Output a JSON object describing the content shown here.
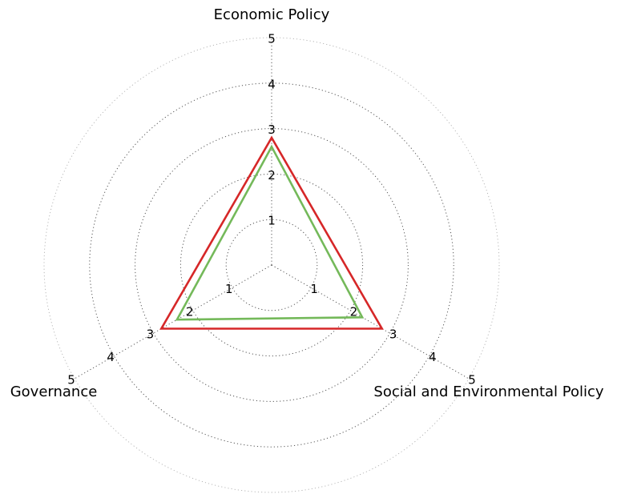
{
  "chart_data": {
    "type": "radar",
    "axes": [
      "Economic Policy",
      "Social and Environmental Policy",
      "Governance"
    ],
    "rlim": [
      0,
      5
    ],
    "ticks": [
      "1",
      "2",
      "3",
      "4",
      "5"
    ],
    "grid": true,
    "series": [
      {
        "values": [
          2.8,
          2.8,
          2.8
        ],
        "color": "#d62728"
      },
      {
        "values": [
          2.6,
          2.3,
          2.4
        ],
        "color": "#74b95a"
      }
    ]
  }
}
